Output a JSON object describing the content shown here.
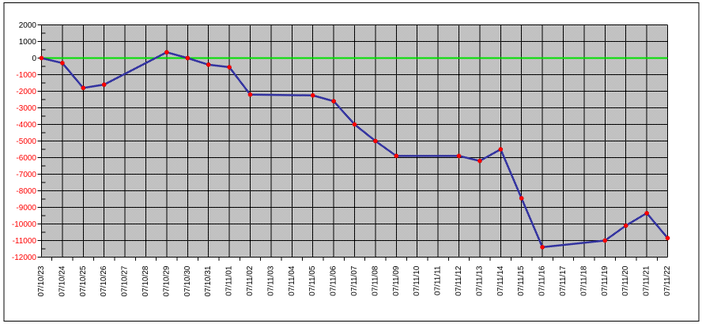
{
  "chart_data": {
    "type": "line",
    "title": "",
    "legend": "none",
    "grid": {
      "show": true,
      "color": "#000000"
    },
    "zero_line": {
      "show": true,
      "color": "#00E000"
    },
    "plot_background": {
      "dot_color": "#9C9C9C",
      "base_color": "#E7E7E7"
    },
    "outer_border_color": "#000000",
    "label_colors": {
      "positive": "#000000",
      "negative": "#FF0000"
    },
    "x_axis": {
      "tick_labels": [
        "07/10/23",
        "07/10/24",
        "07/10/25",
        "07/10/26",
        "07/10/27",
        "07/10/28",
        "07/10/29",
        "07/10/30",
        "07/10/31",
        "07/11/01",
        "07/11/02",
        "07/11/03",
        "07/11/04",
        "07/11/05",
        "07/11/06",
        "07/11/07",
        "07/11/08",
        "07/11/09",
        "07/11/10",
        "07/11/11",
        "07/11/12",
        "07/11/13",
        "07/11/14",
        "07/11/15",
        "07/11/16",
        "07/11/17",
        "07/11/18",
        "07/11/19",
        "07/11/20",
        "07/11/21",
        "07/11/22"
      ]
    },
    "y_axis": {
      "min": -12000,
      "max": 2000,
      "major_step": 1000,
      "minor_step": 500,
      "tick_labels": [
        "2000",
        "1000",
        "0",
        "-1000",
        "-2000",
        "-3000",
        "-4000",
        "-5000",
        "-6000",
        "-7000",
        "-8000",
        "-9000",
        "-10000",
        "-11000",
        "-12000"
      ]
    },
    "series": [
      {
        "color": "#3333A0",
        "marker_color": "#FF0000",
        "points": [
          {
            "date": "07/10/23",
            "value": 0
          },
          {
            "date": "07/10/24",
            "value": -300
          },
          {
            "date": "07/10/25",
            "value": -1800
          },
          {
            "date": "07/10/26",
            "value": -1600
          },
          {
            "date": "07/10/29",
            "value": 350
          },
          {
            "date": "07/10/30",
            "value": 0
          },
          {
            "date": "07/10/31",
            "value": -400
          },
          {
            "date": "07/11/01",
            "value": -550
          },
          {
            "date": "07/11/02",
            "value": -2200
          },
          {
            "date": "07/11/05",
            "value": -2250
          },
          {
            "date": "07/11/06",
            "value": -2600
          },
          {
            "date": "07/11/07",
            "value": -4000
          },
          {
            "date": "07/11/08",
            "value": -5000
          },
          {
            "date": "07/11/09",
            "value": -5900
          },
          {
            "date": "07/11/12",
            "value": -5900
          },
          {
            "date": "07/11/13",
            "value": -6200
          },
          {
            "date": "07/11/14",
            "value": -5500
          },
          {
            "date": "07/11/15",
            "value": -8450
          },
          {
            "date": "07/11/16",
            "value": -11400
          },
          {
            "date": "07/11/19",
            "value": -11000
          },
          {
            "date": "07/11/20",
            "value": -10100
          },
          {
            "date": "07/11/21",
            "value": -9350
          },
          {
            "date": "07/11/22",
            "value": -10850
          }
        ]
      }
    ]
  }
}
